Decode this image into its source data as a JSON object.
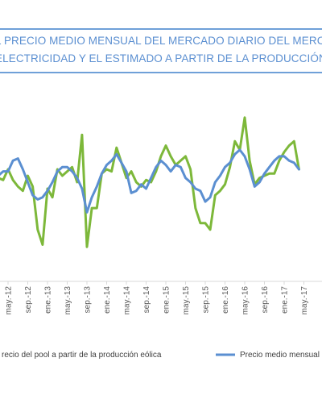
{
  "title": {
    "line1": "L PRECIO MEDIO MENSUAL DEL MERCADO DIARIO DEL MERCADO",
    "line2": "ELECTRICIDAD Y EL ESTIMADO A PARTIR DE LA PRODUCCIÓN"
  },
  "chart_data": {
    "type": "line",
    "title": "",
    "xlabel": "",
    "ylabel": "",
    "grid": false,
    "legend_position": "bottom",
    "x_tick_labels": [
      "may.-12",
      "sep.-12",
      "ene.-13",
      "may.-13",
      "sep.-13",
      "ene.-14",
      "may.-14",
      "sep.-14",
      "ene.-15",
      "may.-15",
      "sep.-15",
      "ene.-16",
      "may.-16",
      "sep.-16",
      "ene.-17",
      "may.-17",
      "sep"
    ],
    "series": [
      {
        "name": "recio del pool a partir de la producción eólica",
        "color": "#7db83a",
        "values": [
          48,
          47,
          52,
          47,
          44,
          42,
          49,
          44,
          24,
          17,
          43,
          39,
          52,
          49,
          51,
          53,
          46,
          68,
          16,
          34,
          34,
          50,
          52,
          51,
          62,
          55,
          48,
          51,
          46,
          44,
          47,
          46,
          51,
          58,
          63,
          58,
          54,
          56,
          58,
          52,
          34,
          27,
          27,
          24,
          40,
          42,
          45,
          53,
          65,
          61,
          76,
          56,
          45,
          48,
          49,
          50,
          50,
          56,
          60,
          63,
          65,
          52
        ]
      },
      {
        "name": "Precio medio mensual",
        "color": "#5b8fd1",
        "values": [
          49,
          51,
          51,
          56,
          57,
          52,
          46,
          40,
          38,
          39,
          42,
          46,
          51,
          53,
          53,
          51,
          48,
          43,
          32,
          39,
          44,
          50,
          54,
          56,
          59,
          55,
          51,
          41,
          42,
          45,
          43,
          48,
          53,
          56,
          54,
          51,
          54,
          53,
          48,
          46,
          43,
          42,
          37,
          39,
          46,
          49,
          53,
          55,
          59,
          61,
          58,
          52,
          44,
          46,
          50,
          53,
          56,
          58,
          58,
          56,
          55,
          52
        ]
      }
    ],
    "ylim": [
      0,
      95
    ],
    "note": "Series begin around March 2012; one point per month."
  }
}
